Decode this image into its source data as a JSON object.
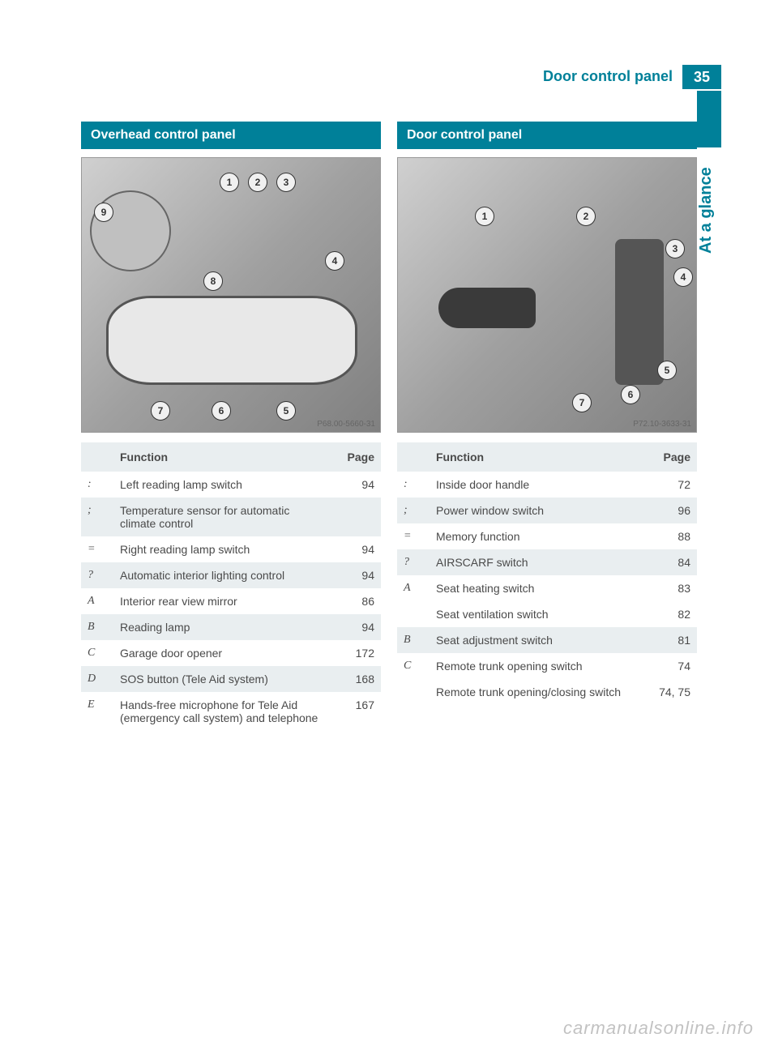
{
  "header": {
    "title": "Door control panel",
    "page_number": "35"
  },
  "side_tab": "At a glance",
  "left_section": {
    "heading": "Overhead control panel",
    "figure_label": "P68.00-5660-31",
    "callouts": [
      "1",
      "2",
      "3",
      "4",
      "5",
      "6",
      "7",
      "8",
      "9"
    ],
    "table": {
      "col_function": "Function",
      "col_page": "Page",
      "rows": [
        {
          "idx": ":",
          "text": "Left reading lamp switch",
          "page": "94",
          "shade": false
        },
        {
          "idx": ";",
          "text": "Temperature sensor for automatic climate control",
          "page": "",
          "shade": true
        },
        {
          "idx": "=",
          "text": "Right reading lamp switch",
          "page": "94",
          "shade": false
        },
        {
          "idx": "?",
          "text": "Automatic interior lighting control",
          "page": "94",
          "shade": true
        },
        {
          "idx": "A",
          "text": "Interior rear view mirror",
          "page": "86",
          "shade": false
        },
        {
          "idx": "B",
          "text": "Reading lamp",
          "page": "94",
          "shade": true
        },
        {
          "idx": "C",
          "text": "Garage door opener",
          "page": "172",
          "shade": false
        },
        {
          "idx": "D",
          "text": "SOS button (Tele Aid system)",
          "page": "168",
          "shade": true
        },
        {
          "idx": "E",
          "text": "Hands-free microphone for Tele Aid (emergency call system) and telephone",
          "page": "167",
          "shade": false
        }
      ]
    }
  },
  "right_section": {
    "heading": "Door control panel",
    "figure_label": "P72.10-3633-31",
    "callouts": [
      "1",
      "2",
      "3",
      "4",
      "5",
      "6",
      "7"
    ],
    "table": {
      "col_function": "Function",
      "col_page": "Page",
      "rows": [
        {
          "idx": ":",
          "text": "Inside door handle",
          "page": "72",
          "shade": false
        },
        {
          "idx": ";",
          "text": "Power window switch",
          "page": "96",
          "shade": true
        },
        {
          "idx": "=",
          "text": "Memory function",
          "page": "88",
          "shade": false
        },
        {
          "idx": "?",
          "text": "AIRSCARF switch",
          "page": "84",
          "shade": true
        },
        {
          "idx": "A",
          "text": "Seat heating switch",
          "page": "83",
          "shade": false,
          "extra_text": "Seat ventilation switch",
          "extra_page": "82"
        },
        {
          "idx": "B",
          "text": "Seat adjustment switch",
          "page": "81",
          "shade": true
        },
        {
          "idx": "C",
          "text": "Remote trunk opening switch",
          "page": "74",
          "shade": false,
          "extra_text": "Remote trunk opening/closing switch",
          "extra_page": "74, 75"
        }
      ]
    }
  },
  "watermark": "carmanualsonline.info",
  "colors": {
    "accent": "#008099",
    "shade_bg": "#e9eef0",
    "text": "#4a4a4a"
  }
}
